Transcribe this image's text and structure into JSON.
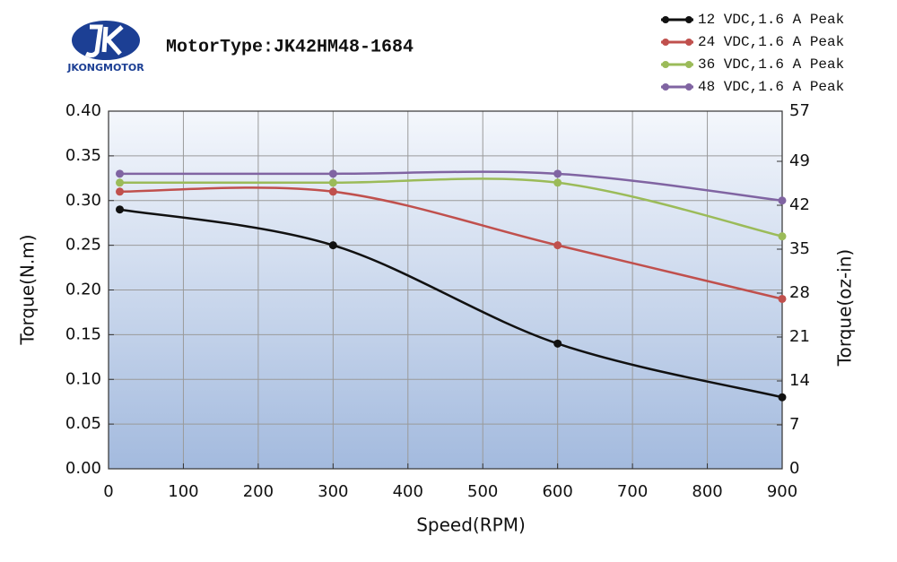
{
  "logo": "JKONGMOTOR",
  "chart_data": {
    "type": "line",
    "title": "MotorType:JK42HM48-1684",
    "x_label": "Speed(RPM)",
    "y_label": "Torque(N.m)",
    "y2_label": "Torque(oz-in)",
    "x": [
      15,
      300,
      600,
      900
    ],
    "series": [
      {
        "name": "12 VDC,1.6 A Peak",
        "color": "#111111",
        "values": [
          0.29,
          0.25,
          0.14,
          0.08
        ]
      },
      {
        "name": "24 VDC,1.6 A Peak",
        "color": "#c0504d",
        "values": [
          0.31,
          0.31,
          0.25,
          0.19
        ]
      },
      {
        "name": "36 VDC,1.6 A Peak",
        "color": "#9bbb59",
        "values": [
          0.32,
          0.32,
          0.32,
          0.26
        ]
      },
      {
        "name": "48 VDC,1.6 A Peak",
        "color": "#8064a2",
        "values": [
          0.33,
          0.33,
          0.33,
          0.3
        ]
      }
    ],
    "xlim": [
      0,
      900
    ],
    "xticks": [
      0,
      100,
      200,
      300,
      400,
      500,
      600,
      700,
      800,
      900
    ],
    "ylim": [
      0,
      0.4
    ],
    "yticks": [
      {
        "value": 0,
        "label": "0.00"
      },
      {
        "value": 0.05,
        "label": "0.05"
      },
      {
        "value": 0.1,
        "label": "0.10"
      },
      {
        "value": 0.15,
        "label": "0.15"
      },
      {
        "value": 0.2,
        "label": "0.20"
      },
      {
        "value": 0.25,
        "label": "0.25"
      },
      {
        "value": 0.3,
        "label": "0.30"
      },
      {
        "value": 0.35,
        "label": "0.35"
      },
      {
        "value": 0.4,
        "label": "0.40"
      }
    ],
    "y2lim": [
      0,
      57
    ],
    "y2ticks": [
      0,
      7,
      14,
      21,
      28,
      35,
      42,
      49,
      57
    ],
    "grid": true,
    "legend": "top-right"
  }
}
